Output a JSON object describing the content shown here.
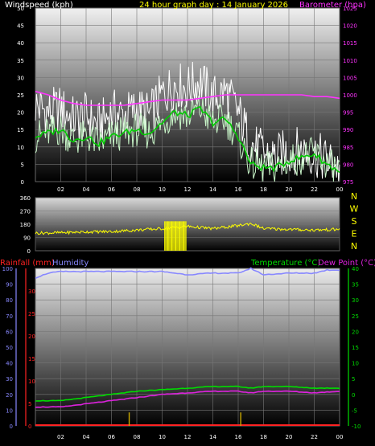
{
  "colors": {
    "wind_label": "#ffffff",
    "title": "#ffff00",
    "barometer": "#ff33ff",
    "gust": "#ffffff",
    "avg_wind": "#c8f5c8",
    "avg_wind_line": "#00cc00",
    "direction": "#ffff00",
    "compass": "#ffff00",
    "rainfall": "#ff2222",
    "humidity": "#8888ff",
    "temperature": "#00dd00",
    "dew_point": "#dd22dd",
    "rain_bars": "#ccaa00"
  },
  "chart_data": [
    {
      "type": "line",
      "title": "24 hour graph day : 14 January 2026",
      "ylabel": "Windspeed (kph)",
      "y2label": "Barometer (hpa)",
      "ylim": [
        0,
        50
      ],
      "y2lim": [
        975,
        1025
      ],
      "yticks": [
        "0",
        "5",
        "10",
        "15",
        "20",
        "25",
        "30",
        "35",
        "40",
        "45",
        "50"
      ],
      "y2ticks": [
        "975",
        "980",
        "985",
        "990",
        "995",
        "1000",
        "1005",
        "1010",
        "1015",
        "1020",
        "1025"
      ],
      "xticks": [
        "02",
        "04",
        "06",
        "08",
        "10",
        "12",
        "14",
        "16",
        "18",
        "20",
        "22",
        "00"
      ],
      "x_hours": [
        0,
        24
      ],
      "series": [
        {
          "key": "barometer",
          "hours": [
            0,
            1,
            2,
            3,
            4,
            5,
            6,
            7,
            8,
            9,
            10,
            11,
            12,
            13,
            14,
            15,
            16,
            17,
            18,
            19,
            20,
            21,
            22,
            23,
            24
          ],
          "values": [
            1001,
            1000,
            998.5,
            997.5,
            997,
            997,
            997,
            997,
            997.5,
            998,
            998.5,
            998.5,
            998.5,
            999,
            999.5,
            1000,
            1000,
            1000,
            1000,
            1000,
            1000,
            1000,
            999.5,
            999.5,
            999
          ]
        },
        {
          "key": "gust",
          "hours": [
            0,
            1,
            2,
            3,
            4,
            5,
            6,
            7,
            8,
            9,
            10,
            11,
            12,
            13,
            14,
            15,
            16,
            17,
            18,
            19,
            20,
            21,
            22,
            23,
            24
          ],
          "values": [
            22,
            20,
            21,
            18,
            19,
            16,
            20,
            19,
            21,
            19,
            25,
            28,
            27,
            29,
            24,
            26,
            20,
            11,
            8,
            7,
            9,
            9,
            8,
            6,
            4
          ]
        },
        {
          "key": "avg_wind",
          "hours": [
            0,
            1,
            2,
            3,
            4,
            5,
            6,
            7,
            8,
            9,
            10,
            11,
            12,
            13,
            14,
            15,
            16,
            17,
            18,
            19,
            20,
            21,
            22,
            23,
            24
          ],
          "values": [
            13,
            14,
            15,
            12,
            13,
            11,
            13,
            14,
            15,
            14,
            17,
            20,
            19,
            21,
            17,
            18,
            13,
            5,
            4,
            4,
            6,
            7,
            8,
            5,
            3
          ]
        }
      ]
    },
    {
      "type": "line",
      "ylim": [
        0,
        360
      ],
      "yticks": [
        "0",
        "90",
        "180",
        "270",
        "360"
      ],
      "compass": [
        "N",
        "W",
        "S",
        "E",
        "N"
      ],
      "series": [
        {
          "key": "direction",
          "hours": [
            0,
            2,
            4,
            6,
            8,
            10,
            12,
            14,
            16,
            17,
            18,
            20,
            22,
            24
          ],
          "values": [
            120,
            122,
            128,
            130,
            140,
            150,
            165,
            150,
            170,
            185,
            150,
            145,
            140,
            145
          ]
        }
      ]
    },
    {
      "type": "line",
      "labels": {
        "rainfall": "Rainfall (mm)",
        "humidity": "Humidity",
        "temperature": "Temperature (°C)",
        "dew_point": "Dew Point (°C)"
      },
      "humidity_ticks": [
        "0",
        "10",
        "20",
        "30",
        "40",
        "50",
        "60",
        "70",
        "80",
        "90",
        "100"
      ],
      "rain_ticks": [
        "0",
        "5",
        "10",
        "15",
        "20",
        "25",
        "30"
      ],
      "temp_ticks": [
        "-10",
        "-5",
        "0",
        "5",
        "10",
        "15",
        "20",
        "25",
        "30",
        "35",
        "40"
      ],
      "humidity_lim": [
        0,
        100
      ],
      "rain_lim": [
        0,
        35
      ],
      "temp_lim": [
        -10,
        40
      ],
      "series": [
        {
          "key": "humidity",
          "hours": [
            0,
            1,
            2,
            4,
            6,
            8,
            10,
            12,
            14,
            16,
            17,
            18,
            20,
            22,
            23,
            24
          ],
          "values": [
            94,
            97,
            98,
            98,
            98,
            98,
            98,
            96,
            97,
            97,
            100,
            96,
            97,
            97,
            99,
            99
          ]
        },
        {
          "key": "temperature",
          "hours": [
            0,
            2,
            4,
            6,
            8,
            10,
            12,
            14,
            16,
            17,
            18,
            20,
            22,
            24
          ],
          "values": [
            -2,
            -2,
            -1,
            0,
            1,
            1.5,
            2,
            2.5,
            2.5,
            2,
            2.5,
            2.5,
            2,
            2
          ]
        },
        {
          "key": "dew_point",
          "hours": [
            0,
            2,
            4,
            6,
            8,
            10,
            12,
            14,
            16,
            17,
            18,
            20,
            22,
            24
          ],
          "values": [
            -4,
            -4,
            -3,
            -2,
            -1,
            0,
            0.5,
            1,
            1,
            0.5,
            1,
            1,
            0.5,
            1
          ]
        },
        {
          "key": "rain_bars",
          "hours": [
            7.4,
            16.2
          ],
          "values": [
            3,
            3
          ]
        }
      ]
    }
  ]
}
